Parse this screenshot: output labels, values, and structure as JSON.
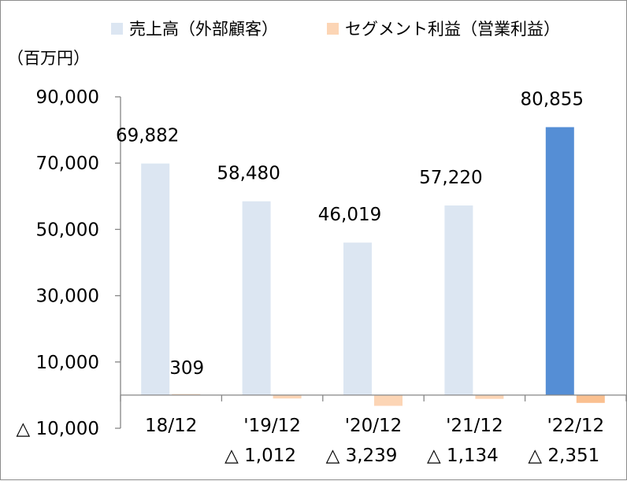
{
  "chart_data": {
    "type": "bar",
    "unit_label": "（百万円）",
    "categories": [
      "18/12",
      "'19/12",
      "'20/12",
      "'21/12",
      "'22/12"
    ],
    "series": [
      {
        "name": "売上高（外部顧客）",
        "color": "#dce6f2",
        "highlight_color": "#558ed5",
        "values": [
          69882,
          58480,
          46019,
          57220,
          80855
        ],
        "labels": [
          "69,882",
          "58,480",
          "46,019",
          "57,220",
          "80,855"
        ]
      },
      {
        "name": "セグメント利益（営業利益）",
        "color": "#fcd5b5",
        "highlight_color": "#fac090",
        "values": [
          309,
          -1012,
          -3239,
          -1134,
          -2351
        ],
        "labels": [
          "309",
          "△ 1,012",
          "△ 3,239",
          "△ 1,134",
          "△ 2,351"
        ]
      }
    ],
    "yticks": [
      90000,
      70000,
      50000,
      30000,
      10000,
      -10000
    ],
    "ytick_labels": [
      "90,000",
      "70,000",
      "50,000",
      "30,000",
      "10,000",
      "△ 10,000"
    ],
    "ylim": [
      -10000,
      90000
    ],
    "grid": false,
    "legend_position": "top"
  }
}
